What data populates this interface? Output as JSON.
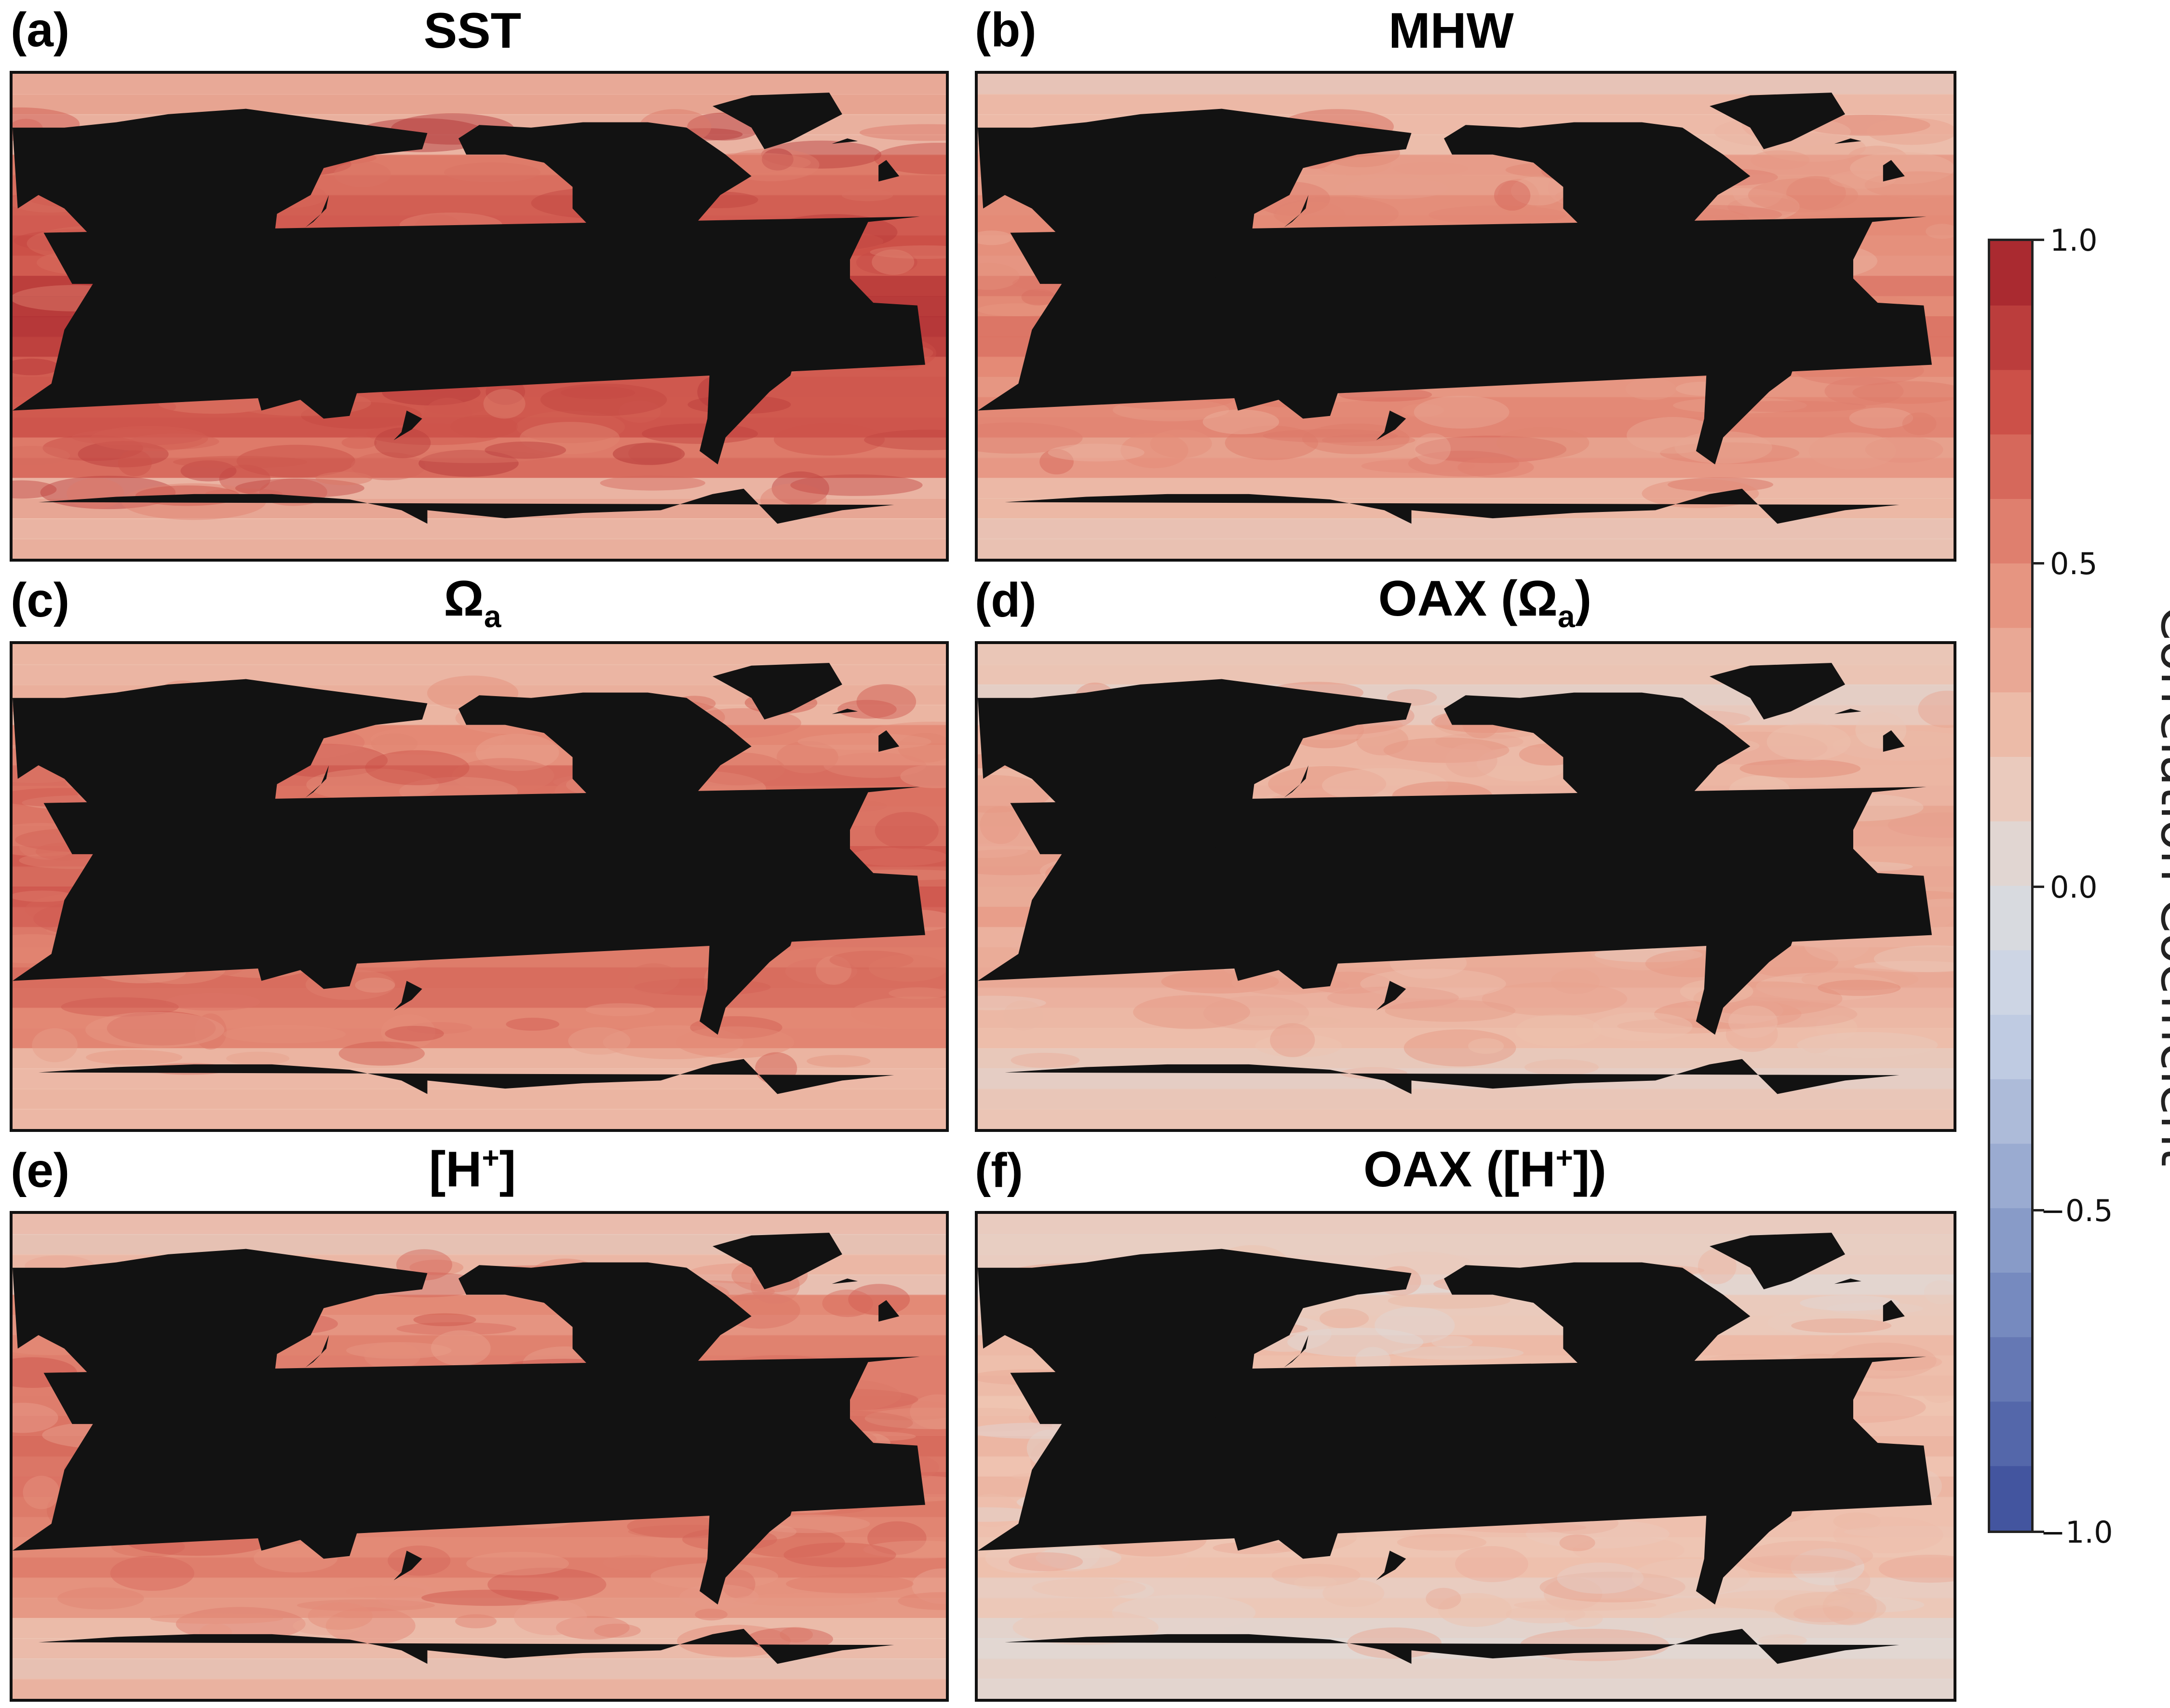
{
  "panels": [
    {
      "letter": "(a)",
      "title": "SST",
      "title_sub": "",
      "title_sup": "",
      "title_after": ""
    },
    {
      "letter": "(b)",
      "title": "MHW",
      "title_sub": "",
      "title_sup": "",
      "title_after": ""
    },
    {
      "letter": "(c)",
      "title": "Ω",
      "title_sub": "a",
      "title_sup": "",
      "title_after": ""
    },
    {
      "letter": "(d)",
      "title": "OAX (Ω",
      "title_sub": "a",
      "title_sup": "",
      "title_after": ")"
    },
    {
      "letter": "(e)",
      "title": "[H",
      "title_sub": "",
      "title_sup": "+",
      "title_after": "]"
    },
    {
      "letter": "(f)",
      "title": "OAX ([H",
      "title_sub": "",
      "title_sup": "+",
      "title_after": "])"
    }
  ],
  "colorbar": {
    "label": "Correlation Coefficient",
    "ticks": [
      "1.0",
      "0.5",
      "0.0",
      "−0.5",
      "−1.0"
    ],
    "tick_values": [
      1.0,
      0.5,
      0.0,
      -0.5,
      -1.0
    ],
    "range": [
      -1.0,
      1.0
    ],
    "levels": 20,
    "colormap": "RdBu_r",
    "low_color": "#3b4c9a",
    "mid_color": "#dddcdc",
    "high_color": "#a2212a",
    "land_color": "#121212"
  },
  "panel_levels": {
    "(a)": 0.72,
    "(b)": 0.48,
    "(c)": 0.58,
    "(d)": 0.32,
    "(e)": 0.55,
    "(f)": 0.22
  }
}
